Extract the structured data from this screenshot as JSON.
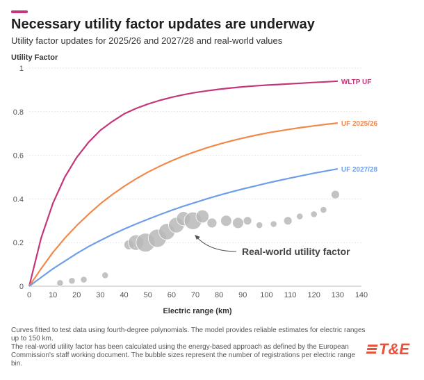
{
  "header": {
    "title": "Necessary utility factor updates are underway",
    "subtitle": "Utility factor updates for 2025/26 and 2027/28 and real-world values"
  },
  "footer": {
    "note1": "Curves fitted to test data using fourth-degree polynomials. The model provides reliable estimates for electric ranges up to 150 km.",
    "note2": "The real-world utility factor has been calculated using the energy-based approach as defined by the European Commission's staff working document. The bubble sizes represent the number of registrations per electric range bin."
  },
  "logo": {
    "text": "T&E",
    "color": "#e8513a"
  },
  "chart_data": {
    "type": "line",
    "ylabel": "Utility Factor",
    "xlabel": "Electric range (km)",
    "xlim": [
      0,
      140
    ],
    "ylim": [
      0,
      1
    ],
    "xticks": [
      0,
      10,
      20,
      30,
      40,
      50,
      60,
      70,
      80,
      90,
      100,
      110,
      120,
      130,
      140
    ],
    "yticks": [
      0,
      0.2,
      0.4,
      0.6,
      0.8,
      1
    ],
    "yticklabels": [
      "0",
      "0.2",
      "0.4",
      "0.6",
      "0.8",
      "1"
    ],
    "grid": "horizontal",
    "x": [
      0,
      5,
      10,
      15,
      20,
      25,
      30,
      35,
      40,
      45,
      50,
      55,
      60,
      65,
      70,
      75,
      80,
      85,
      90,
      95,
      100,
      105,
      110,
      115,
      120,
      125,
      130
    ],
    "series": [
      {
        "name": "WLTP UF",
        "color": "#c4367a",
        "values": [
          0,
          0.22,
          0.38,
          0.5,
          0.59,
          0.66,
          0.715,
          0.755,
          0.79,
          0.815,
          0.835,
          0.852,
          0.866,
          0.878,
          0.888,
          0.896,
          0.903,
          0.909,
          0.914,
          0.918,
          0.922,
          0.925,
          0.928,
          0.931,
          0.934,
          0.937,
          0.94
        ]
      },
      {
        "name": "UF 2025/26",
        "color": "#f0894a",
        "values": [
          0,
          0.08,
          0.155,
          0.22,
          0.278,
          0.33,
          0.378,
          0.42,
          0.458,
          0.492,
          0.523,
          0.55,
          0.575,
          0.597,
          0.617,
          0.635,
          0.651,
          0.666,
          0.679,
          0.691,
          0.702,
          0.711,
          0.72,
          0.728,
          0.735,
          0.742,
          0.748
        ]
      },
      {
        "name": "UF 2027/28",
        "color": "#6f9ee8",
        "values": [
          0,
          0.04,
          0.08,
          0.115,
          0.15,
          0.182,
          0.21,
          0.237,
          0.262,
          0.285,
          0.307,
          0.328,
          0.348,
          0.367,
          0.384,
          0.401,
          0.417,
          0.432,
          0.446,
          0.459,
          0.472,
          0.484,
          0.496,
          0.507,
          0.518,
          0.528,
          0.538
        ]
      }
    ],
    "bubbles": {
      "name": "Real-world utility factor",
      "color": "#b8b8b8",
      "points": [
        {
          "x": 13,
          "y": 0.015,
          "size": 1
        },
        {
          "x": 18,
          "y": 0.025,
          "size": 1
        },
        {
          "x": 23,
          "y": 0.03,
          "size": 1
        },
        {
          "x": 32,
          "y": 0.05,
          "size": 1
        },
        {
          "x": 42,
          "y": 0.19,
          "size": 3
        },
        {
          "x": 45,
          "y": 0.2,
          "size": 9
        },
        {
          "x": 49,
          "y": 0.2,
          "size": 14
        },
        {
          "x": 54,
          "y": 0.22,
          "size": 13
        },
        {
          "x": 58,
          "y": 0.25,
          "size": 10
        },
        {
          "x": 62,
          "y": 0.28,
          "size": 9
        },
        {
          "x": 65,
          "y": 0.31,
          "size": 7
        },
        {
          "x": 69,
          "y": 0.3,
          "size": 12
        },
        {
          "x": 73,
          "y": 0.32,
          "size": 6
        },
        {
          "x": 77,
          "y": 0.29,
          "size": 3
        },
        {
          "x": 83,
          "y": 0.3,
          "size": 4
        },
        {
          "x": 88,
          "y": 0.29,
          "size": 4
        },
        {
          "x": 92,
          "y": 0.3,
          "size": 2
        },
        {
          "x": 97,
          "y": 0.28,
          "size": 1
        },
        {
          "x": 103,
          "y": 0.285,
          "size": 1
        },
        {
          "x": 109,
          "y": 0.3,
          "size": 2
        },
        {
          "x": 114,
          "y": 0.32,
          "size": 1
        },
        {
          "x": 120,
          "y": 0.33,
          "size": 1
        },
        {
          "x": 124,
          "y": 0.35,
          "size": 1
        },
        {
          "x": 129,
          "y": 0.42,
          "size": 2
        }
      ],
      "annotation": "Real-world utility factor"
    }
  }
}
